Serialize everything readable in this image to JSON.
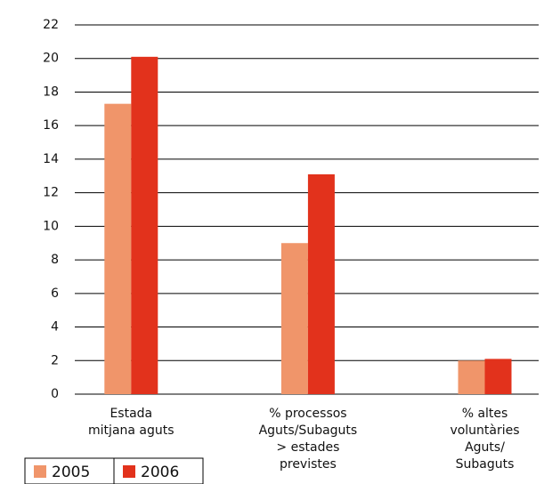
{
  "chart_data": {
    "type": "bar",
    "categories": [
      [
        "Estada",
        "mitjana aguts"
      ],
      [
        "% processos",
        "Aguts/Subaguts",
        "> estades",
        "previstes"
      ],
      [
        "% altes",
        "voluntàries",
        "Aguts/",
        "Subaguts"
      ]
    ],
    "series": [
      {
        "name": "2005",
        "color": "#f0956a",
        "values": [
          17.3,
          9.0,
          2.0
        ]
      },
      {
        "name": "2006",
        "color": "#e2321c",
        "values": [
          20.1,
          13.1,
          2.1
        ]
      }
    ],
    "ylim": [
      0,
      22
    ],
    "yticks": [
      0,
      2,
      4,
      6,
      8,
      10,
      12,
      14,
      16,
      18,
      20,
      22
    ],
    "grid": true,
    "legend": "bottom-left"
  }
}
